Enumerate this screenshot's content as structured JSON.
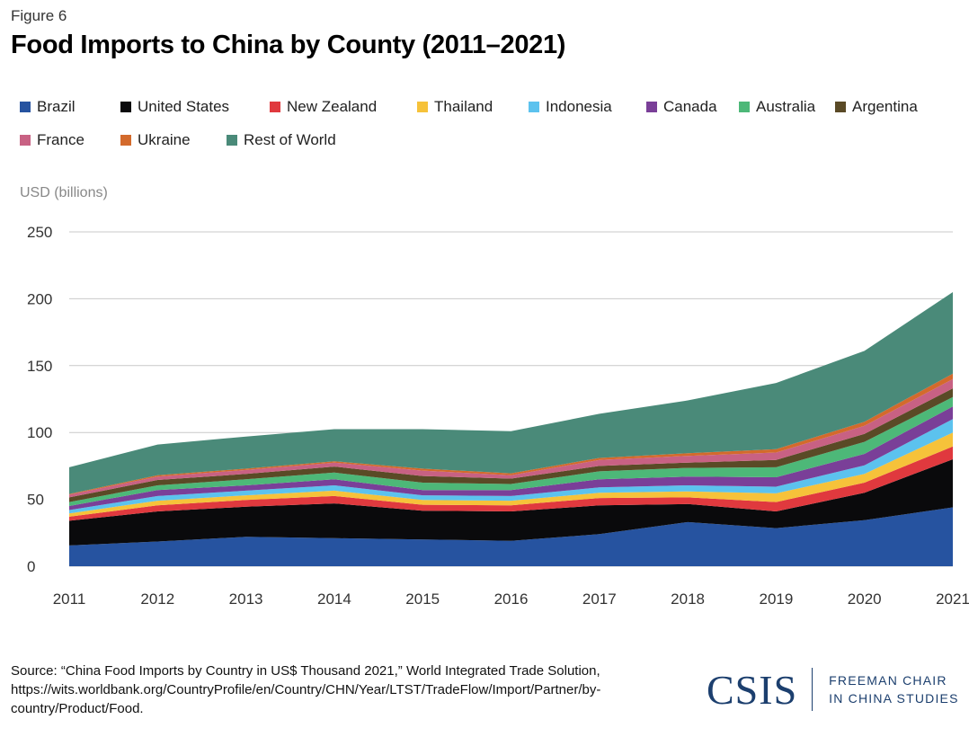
{
  "figure_label": "Figure 6",
  "colors": {
    "Brazil": "#2653a0",
    "United States": "#0a0a0c",
    "New Zealand": "#e0393e",
    "Thailand": "#f6c23a",
    "Indonesia": "#5cc2ee",
    "Canada": "#7a3f98",
    "Australia": "#4db878",
    "Argentina": "#5a4a26",
    "France": "#c86183",
    "Ukraine": "#d36a2c",
    "Rest of World": "#4a8a79"
  },
  "chart_data": {
    "type": "area",
    "stacked": true,
    "title": "Food Imports to China by County (2011–2021)",
    "ylabel": "USD (billions)",
    "xlabel": "",
    "ylim": [
      0,
      250
    ],
    "yticks": [
      "0",
      "50",
      "100",
      "150",
      "200",
      "250"
    ],
    "categories": [
      "2011",
      "2012",
      "2013",
      "2014",
      "2015",
      "2016",
      "2017",
      "2018",
      "2019",
      "2020",
      "2021"
    ],
    "grid": true,
    "legend_position": "top",
    "series": [
      {
        "name": "Brazil",
        "values": [
          15.5,
          18.5,
          22,
          21,
          20,
          19,
          24,
          33,
          28.5,
          34.5,
          44
        ]
      },
      {
        "name": "United States",
        "values": [
          18.5,
          22.5,
          22.5,
          26,
          21.5,
          22,
          21.5,
          13.5,
          12.5,
          20.5,
          36
        ]
      },
      {
        "name": "New Zealand",
        "values": [
          3,
          4.5,
          5,
          5.5,
          4.5,
          4.5,
          5.5,
          5,
          7,
          7.5,
          9.5
        ]
      },
      {
        "name": "Thailand",
        "values": [
          2.5,
          3.5,
          3.5,
          4,
          3.5,
          3.5,
          4,
          4.5,
          6.5,
          6.5,
          10.5
        ]
      },
      {
        "name": "Indonesia",
        "values": [
          2.5,
          3.5,
          3.5,
          4,
          3.5,
          3.5,
          4,
          4.5,
          5,
          6.5,
          10
        ]
      },
      {
        "name": "Canada",
        "values": [
          3,
          4.5,
          4,
          4.5,
          4,
          4.5,
          6,
          6.5,
          7,
          8.5,
          9.5
        ]
      },
      {
        "name": "Australia",
        "values": [
          3,
          3.5,
          4.5,
          5,
          5.5,
          4.5,
          6,
          6.5,
          7.5,
          9,
          7
        ]
      },
      {
        "name": "Argentina",
        "values": [
          3.5,
          4,
          4,
          4.5,
          5,
          4,
          4,
          4,
          5.5,
          6,
          6.5
        ]
      },
      {
        "name": "France",
        "values": [
          2,
          2.5,
          3,
          3,
          4,
          2.5,
          4.5,
          5,
          5.5,
          6,
          7
        ]
      },
      {
        "name": "Ukraine",
        "values": [
          0.5,
          1,
          1,
          1,
          1.5,
          1.5,
          1.5,
          2,
          2.5,
          3,
          4
        ]
      },
      {
        "name": "Rest of World",
        "values": [
          20,
          23,
          24,
          24,
          29.5,
          31.5,
          33,
          39.5,
          49.5,
          53,
          61
        ]
      }
    ]
  },
  "source_text": "Source: “China Food Imports by Country in US$ Thousand 2021,” World Integrated Trade Solution, https://wits.worldbank.org/CountryProfile/en/Country/CHN/Year/LTST/TradeFlow/Import/Partner/by-country/Product/Food.",
  "logo": {
    "mark": "CSIS",
    "line1": "FREEMAN CHAIR",
    "line2": "IN CHINA STUDIES"
  }
}
